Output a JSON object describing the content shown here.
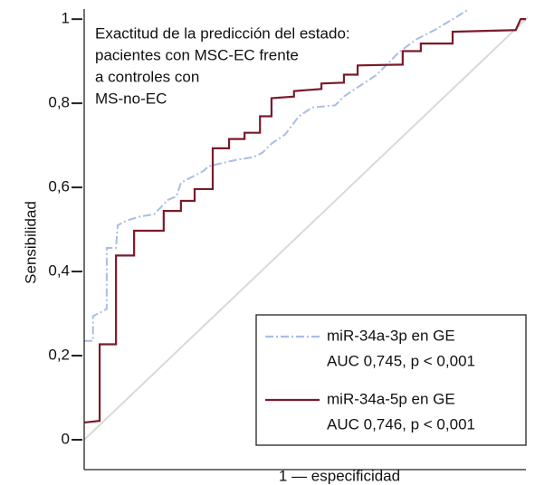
{
  "chart_data": {
    "type": "line",
    "title": [
      "Exactitud de la predicción del estado:",
      "pacientes con MSC-EC frente",
      "a controles con",
      "MS-no-EC"
    ],
    "x_label": "1 — especificidad",
    "y_label": "Sensibilidad",
    "xlim": [
      0,
      1
    ],
    "ylim": [
      -0.071,
      1.024
    ],
    "yticks": [
      0,
      {
        "value": 0.2,
        "label": "0,2"
      },
      {
        "value": 0.4,
        "label": "0,4"
      },
      {
        "value": 0.6,
        "label": "0,6"
      },
      {
        "value": 0.8,
        "label": "0,8"
      },
      1
    ],
    "reference_diagonal": true,
    "legend_position": "lower right",
    "series": [
      {
        "name": "miR-34a-3p en GE",
        "auc_label": "AUC 0,745, p < 0,001",
        "color": "#aabde6",
        "dashed": true,
        "x": [
          0,
          0.02,
          0.02,
          0.041,
          0.051,
          0.051,
          0.072,
          0.076,
          0.096,
          0.127,
          0.158,
          0.174,
          0.189,
          0.209,
          0.219,
          0.27,
          0.281,
          0.342,
          0.383,
          0.404,
          0.424,
          0.455,
          0.486,
          0.516,
          0.568,
          0.588,
          0.619,
          0.66,
          0.691,
          0.711,
          0.752,
          0.793,
          0.844,
          0.871
        ],
        "values": [
          0.235,
          0.235,
          0.294,
          0.305,
          0.311,
          0.456,
          0.456,
          0.51,
          0.521,
          0.531,
          0.536,
          0.553,
          0.57,
          0.579,
          0.611,
          0.639,
          0.65,
          0.665,
          0.672,
          0.683,
          0.704,
          0.726,
          0.769,
          0.79,
          0.795,
          0.816,
          0.838,
          0.866,
          0.898,
          0.92,
          0.952,
          0.974,
          1.006,
          1.024
        ]
      },
      {
        "name": "miR-34a-5p en GE",
        "auc_label": "AUC 0,746, p < 0,001",
        "color": "#7b1a2a",
        "dashed": false,
        "x": [
          0,
          0.035,
          0.035,
          0.072,
          0.072,
          0.113,
          0.113,
          0.18,
          0.18,
          0.219,
          0.219,
          0.25,
          0.25,
          0.291,
          0.291,
          0.328,
          0.328,
          0.363,
          0.363,
          0.398,
          0.398,
          0.424,
          0.424,
          0.475,
          0.475,
          0.537,
          0.537,
          0.588,
          0.588,
          0.619,
          0.619,
          0.721,
          0.721,
          0.762,
          0.762,
          0.834,
          0.834,
          0.977,
          0.988,
          1
        ],
        "values": [
          0.041,
          0.045,
          0.227,
          0.227,
          0.438,
          0.438,
          0.497,
          0.497,
          0.544,
          0.544,
          0.568,
          0.568,
          0.596,
          0.596,
          0.693,
          0.693,
          0.715,
          0.715,
          0.73,
          0.73,
          0.769,
          0.769,
          0.812,
          0.816,
          0.829,
          0.834,
          0.847,
          0.849,
          0.868,
          0.868,
          0.89,
          0.892,
          0.924,
          0.924,
          0.942,
          0.942,
          0.97,
          0.974,
          1,
          1
        ]
      }
    ]
  }
}
